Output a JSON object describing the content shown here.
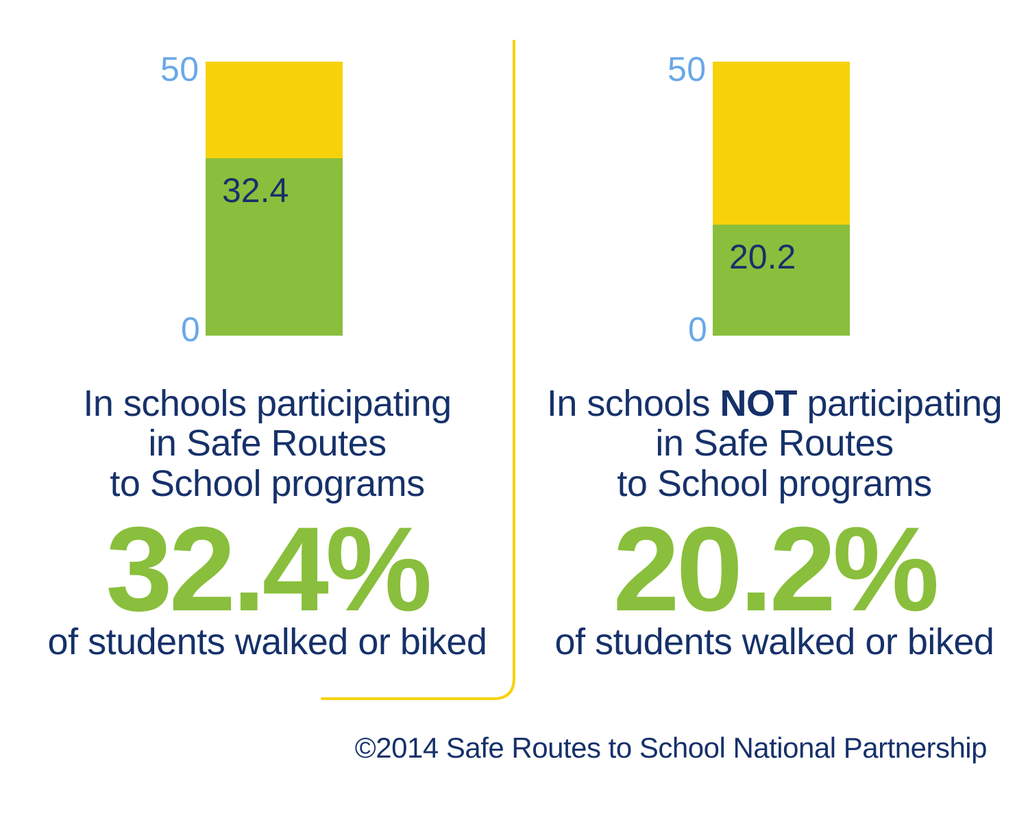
{
  "colors": {
    "background": "#ffffff",
    "axis_text": "#6aa8e8",
    "value_text": "#16316a",
    "caption_text": "#16316a",
    "big_pct": "#89bf3c",
    "bar_bg": "#f7d20a",
    "bar_fill": "#89bf3c",
    "divider": "#f7d20a",
    "credit_text": "#16316a"
  },
  "chart": {
    "ymin": 0,
    "ymax": 50,
    "axis_top_label": "50",
    "axis_bottom_label": "0"
  },
  "left": {
    "value": 32.4,
    "value_label": "32.4",
    "big_pct": "32.4%",
    "line1": "In schools participating",
    "line2": "in Safe Routes",
    "line3": "to School programs",
    "sub": "of students walked or biked"
  },
  "right": {
    "value": 20.2,
    "value_label": "20.2",
    "big_pct": "20.2%",
    "line1_a": "In schools ",
    "line1_b_em": "NOT",
    "line1_c": " participating",
    "line2": "in Safe Routes",
    "line3": "to School programs",
    "sub": "of students walked or biked"
  },
  "credit": "©2014 Safe Routes to School National Partnership"
}
